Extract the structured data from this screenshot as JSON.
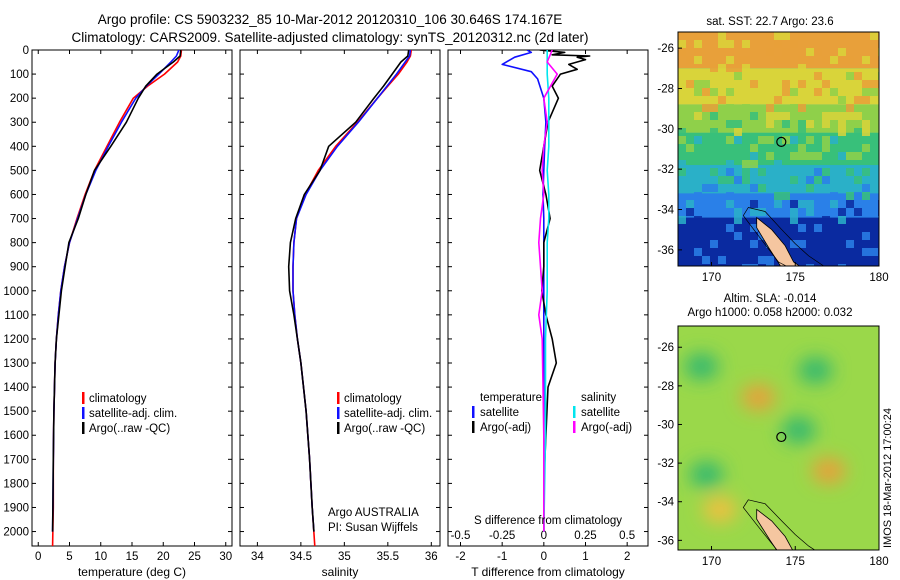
{
  "header": {
    "line1": "Argo profile: CS 5903232_85 10-Mar-2012 20120310_106 30.646S 174.167E",
    "line2": "Climatology: CARS2009. Satellite-adjusted climatology: synTS_20120312.nc (2d later)"
  },
  "colors": {
    "climatology": "#ff0000",
    "satellite": "#1010ff",
    "argo": "#000000",
    "satellite_salinity": "#00e5ee",
    "argo_adj_salinity": "#ff00ff",
    "station_marker": "#000000",
    "land": "#f5c6a0"
  },
  "chart_data": [
    {
      "type": "line",
      "id": "temperature",
      "xlabel": "temperature (deg C)",
      "ylabel": "",
      "xlim": [
        -1,
        31
      ],
      "ylim": [
        2060,
        0
      ],
      "y_reversed": true,
      "xticks": [
        "0",
        "5",
        "10",
        "15",
        "20",
        "25",
        "30"
      ],
      "yticks": [
        "0",
        "100",
        "200",
        "300",
        "400",
        "500",
        "600",
        "700",
        "800",
        "900",
        "1000",
        "1100",
        "1200",
        "1300",
        "1400",
        "1500",
        "1600",
        "1700",
        "1800",
        "1900",
        "2000"
      ],
      "legend": [
        "climatology",
        "satellite-adj. clim.",
        "Argo(..raw -QC)"
      ],
      "legend_placement": "lower-center",
      "series": [
        {
          "name": "climatology",
          "color": "#ff0000",
          "x": [
            22.9,
            22.8,
            22.3,
            20.2,
            17.5,
            15.2,
            13.0,
            11.0,
            9.0,
            7.5,
            6.2,
            5.0,
            4.2,
            3.6,
            3.2,
            2.9,
            2.7,
            2.6,
            2.5,
            2.4,
            2.4,
            2.3
          ],
          "y": [
            0,
            25,
            50,
            100,
            150,
            200,
            300,
            400,
            500,
            600,
            700,
            800,
            900,
            1000,
            1100,
            1200,
            1300,
            1400,
            1500,
            1700,
            1900,
            2060
          ]
        },
        {
          "name": "satellite-adj. clim.",
          "color": "#1010ff",
          "x": [
            22.5,
            22.1,
            21.2,
            19.3,
            17.3,
            15.6,
            13.3,
            11.2,
            9.2,
            7.6,
            6.3,
            5.0,
            4.2,
            3.6,
            3.2,
            2.9,
            2.7,
            2.6,
            2.5,
            2.4,
            2.35,
            2.3
          ],
          "y": [
            0,
            25,
            50,
            100,
            150,
            200,
            300,
            400,
            500,
            600,
            700,
            800,
            900,
            1000,
            1100,
            1200,
            1300,
            1400,
            1500,
            1700,
            1900,
            2000
          ]
        },
        {
          "name": "Argo(..raw -QC)",
          "color": "#000000",
          "x": [
            22.8,
            22.7,
            21.6,
            19.0,
            17.2,
            16.0,
            14.1,
            11.6,
            9.0,
            7.6,
            6.4,
            4.9,
            4.3,
            3.7,
            3.3,
            2.9,
            2.7,
            2.6,
            2.5,
            2.4,
            2.35,
            2.3
          ],
          "y": [
            0,
            25,
            50,
            100,
            150,
            200,
            300,
            400,
            500,
            600,
            700,
            800,
            900,
            1000,
            1100,
            1200,
            1300,
            1400,
            1500,
            1700,
            1900,
            2000
          ]
        }
      ]
    },
    {
      "type": "line",
      "id": "salinity",
      "xlabel": "salinity",
      "ylabel": "",
      "xlim": [
        33.8,
        36.1
      ],
      "ylim": [
        2060,
        0
      ],
      "y_reversed": true,
      "xticks": [
        "34",
        "34.5",
        "35",
        "35.5",
        "36"
      ],
      "legend": [
        "climatology",
        "satellite-adj. clim.",
        "Argo(..raw -QC)"
      ],
      "legend_placement": "lower-center",
      "annotation": [
        "Argo AUSTRALIA",
        "PI: Susan Wijffels"
      ],
      "series": [
        {
          "name": "climatology",
          "color": "#ff0000",
          "x": [
            35.77,
            35.76,
            35.72,
            35.62,
            35.5,
            35.38,
            35.15,
            34.9,
            34.7,
            34.55,
            34.45,
            34.42,
            34.41,
            34.41,
            34.43,
            34.46,
            34.5,
            34.53,
            34.56,
            34.6,
            34.63,
            34.66
          ],
          "y": [
            0,
            25,
            50,
            100,
            150,
            200,
            300,
            400,
            500,
            600,
            700,
            800,
            900,
            1000,
            1100,
            1200,
            1300,
            1400,
            1500,
            1700,
            1900,
            2060
          ]
        },
        {
          "name": "satellite-adj. clim.",
          "color": "#1010ff",
          "x": [
            35.76,
            35.75,
            35.7,
            35.6,
            35.49,
            35.38,
            35.16,
            34.92,
            34.72,
            34.56,
            34.45,
            34.42,
            34.41,
            34.41,
            34.43,
            34.46,
            34.5,
            34.53,
            34.56,
            34.6,
            34.63,
            34.65
          ],
          "y": [
            0,
            25,
            50,
            100,
            150,
            200,
            300,
            400,
            500,
            600,
            700,
            800,
            900,
            1000,
            1100,
            1200,
            1300,
            1400,
            1500,
            1700,
            1900,
            2000
          ]
        },
        {
          "name": "Argo(..raw -QC)",
          "color": "#000000",
          "x": [
            35.74,
            35.73,
            35.65,
            35.55,
            35.45,
            35.34,
            35.13,
            34.82,
            34.72,
            34.54,
            34.44,
            34.38,
            34.36,
            34.37,
            34.42,
            34.46,
            34.5,
            34.53,
            34.56,
            34.6,
            34.63,
            34.65
          ],
          "y": [
            0,
            25,
            50,
            100,
            150,
            200,
            300,
            400,
            500,
            600,
            700,
            800,
            900,
            1000,
            1100,
            1200,
            1300,
            1400,
            1500,
            1700,
            1900,
            2000
          ]
        }
      ]
    },
    {
      "type": "line",
      "id": "difference",
      "xlabel": "T difference from climatology",
      "xlabel_top": "S difference from climatology",
      "ylabel": "",
      "xlim": [
        -2.3,
        2.5
      ],
      "xlim_salinity": [
        -0.575,
        0.625
      ],
      "ylim": [
        2060,
        0
      ],
      "y_reversed": true,
      "xticks": [
        "-2",
        "-1",
        "0",
        "1",
        "2"
      ],
      "xticks_salinity": [
        "-0.5",
        "-0.25",
        "0",
        "0.25",
        "0.5"
      ],
      "legend_titles": [
        "temperature",
        "salinity"
      ],
      "legend": [
        "satellite",
        "Argo(-adj)",
        "satellite",
        "Argo(-adj)"
      ],
      "legend_placement": "lower-center",
      "series": [
        {
          "name": "satellite",
          "group": "temperature",
          "color": "#1010ff",
          "x": [
            -0.4,
            -0.3,
            -0.7,
            -1.0,
            -0.3,
            -0.15,
            0.0,
            0.05,
            0.02,
            0.0,
            -0.02,
            0.0,
            0.0,
            0.0,
            0.0,
            0.0,
            0.0,
            0.0,
            0.0
          ],
          "y": [
            0,
            10,
            30,
            60,
            90,
            120,
            200,
            300,
            400,
            500,
            600,
            700,
            800,
            1000,
            1200,
            1400,
            1600,
            1800,
            2000
          ]
        },
        {
          "name": "Argo(-adj)",
          "group": "temperature",
          "color": "#000000",
          "x": [
            -0.1,
            0.5,
            0.2,
            1.1,
            0.8,
            1.0,
            0.6,
            0.8,
            0.4,
            0.2,
            0.35,
            0.1,
            0.0,
            -0.1,
            0.05,
            0.15,
            0.0,
            0.0,
            -0.05,
            0.05,
            0.2,
            0.3,
            0.1,
            0.05,
            0.0,
            0.0
          ],
          "y": [
            0,
            10,
            20,
            25,
            30,
            40,
            60,
            80,
            100,
            150,
            200,
            300,
            400,
            500,
            600,
            700,
            800,
            900,
            1000,
            1100,
            1200,
            1300,
            1400,
            1600,
            1800,
            2000
          ]
        },
        {
          "name": "satellite",
          "group": "salinity",
          "color": "#00e5ee",
          "x": [
            0.02,
            0.02,
            0.03,
            0.03,
            0.03,
            0.02,
            0.03,
            0.03,
            0.02,
            0.02,
            0.01,
            0.01,
            0.01,
            0.0
          ],
          "y": [
            0,
            100,
            200,
            300,
            400,
            500,
            600,
            700,
            800,
            1000,
            1200,
            1400,
            1600,
            2000
          ]
        },
        {
          "name": "Argo(-adj)",
          "group": "salinity",
          "color": "#ff00ff",
          "x": [
            0.05,
            0.02,
            0.08,
            0.0,
            0.02,
            0.0,
            -0.01,
            0.0,
            -0.02,
            -0.03,
            -0.02,
            -0.01,
            -0.03,
            -0.01,
            0.0,
            0.0
          ],
          "y": [
            0,
            50,
            100,
            200,
            300,
            400,
            500,
            600,
            700,
            800,
            900,
            1000,
            1100,
            1200,
            1600,
            2000
          ]
        }
      ]
    },
    {
      "type": "heatmap",
      "id": "sst_map",
      "title": "sat. SST: 22.7 Argo: 23.6",
      "xlim": [
        168,
        180
      ],
      "ylim": [
        -36.8,
        -25.2
      ],
      "xticks": [
        "170",
        "175",
        "180"
      ],
      "yticks": [
        "-26",
        "-28",
        "-30",
        "-32",
        "-34",
        "-36"
      ],
      "value_bands": [
        {
          "lat_from": -25.2,
          "lat_to": -27.0,
          "value": 23.5,
          "color": "#e8a03a"
        },
        {
          "lat_from": -27.0,
          "lat_to": -28.8,
          "value": 23.0,
          "color": "#d9d43a"
        },
        {
          "lat_from": -28.8,
          "lat_to": -30.2,
          "value": 22.5,
          "color": "#8fd04a"
        },
        {
          "lat_from": -30.2,
          "lat_to": -31.8,
          "value": 22.0,
          "color": "#38c07a"
        },
        {
          "lat_from": -31.8,
          "lat_to": -33.2,
          "value": 21.5,
          "color": "#2ab0c8"
        },
        {
          "lat_from": -33.2,
          "lat_to": -34.4,
          "value": 21.0,
          "color": "#2a80e8"
        },
        {
          "lat_from": -34.4,
          "lat_to": -36.8,
          "value": 20.0,
          "color": "#0a2aa0"
        }
      ],
      "station": {
        "lon": 174.167,
        "lat": -30.646
      }
    },
    {
      "type": "heatmap",
      "id": "sla_map",
      "title_line1": "Altim. SLA: -0.014",
      "title_line2": "Argo h1000: 0.058 h2000: 0.032",
      "xlim": [
        168,
        180
      ],
      "ylim": [
        -36.5,
        -24.9
      ],
      "xticks": [
        "170",
        "175",
        "180"
      ],
      "yticks": [
        "-26",
        "-28",
        "-30",
        "-32",
        "-34",
        "-36"
      ],
      "features": [
        {
          "kind": "high",
          "lon": 172.8,
          "lat": -28.6,
          "color": "#e8a03a"
        },
        {
          "kind": "high",
          "lon": 177.0,
          "lat": -32.4,
          "color": "#e8a03a"
        },
        {
          "kind": "high",
          "lon": 170.5,
          "lat": -34.4,
          "color": "#f0c040"
        },
        {
          "kind": "low",
          "lon": 169.4,
          "lat": -27.0,
          "color": "#30b870"
        },
        {
          "kind": "low",
          "lon": 176.2,
          "lat": -27.2,
          "color": "#30b870"
        },
        {
          "kind": "low",
          "lon": 175.2,
          "lat": -30.3,
          "color": "#30b870"
        },
        {
          "kind": "low",
          "lon": 169.7,
          "lat": -32.6,
          "color": "#30b870"
        }
      ],
      "station": {
        "lon": 174.167,
        "lat": -30.646
      }
    }
  ],
  "watermark": "IMOS 18-Mar-2012 17:00:24"
}
